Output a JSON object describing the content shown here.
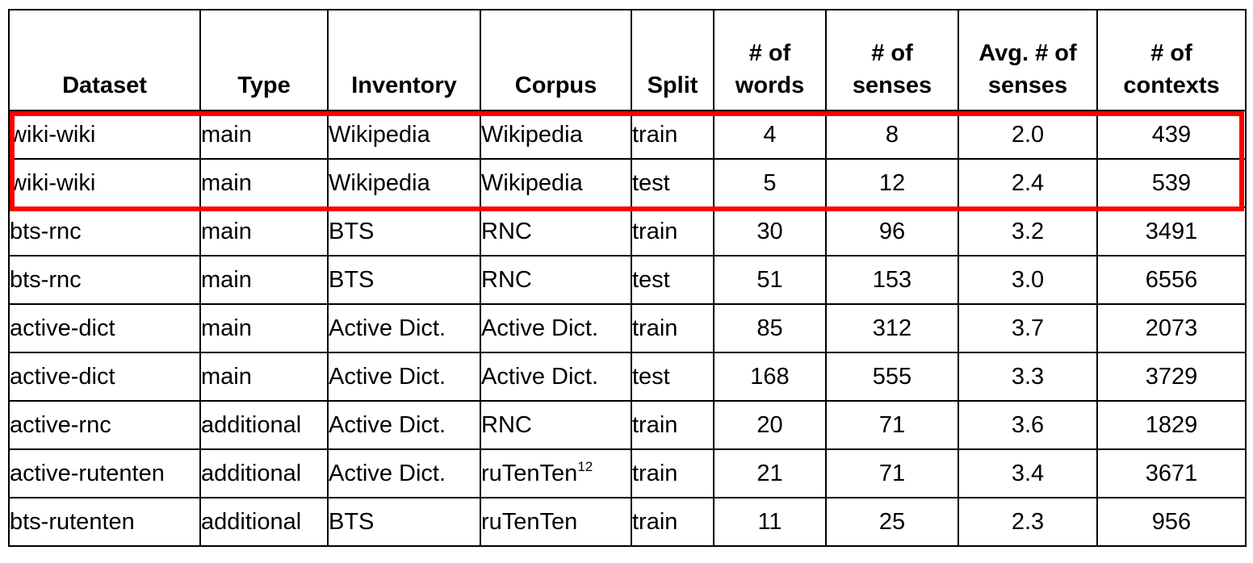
{
  "table": {
    "columns": [
      {
        "line1": "",
        "line2": "Dataset"
      },
      {
        "line1": "",
        "line2": "Type"
      },
      {
        "line1": "",
        "line2": "Inventory"
      },
      {
        "line1": "",
        "line2": "Corpus"
      },
      {
        "line1": "",
        "line2": "Split"
      },
      {
        "line1": "# of",
        "line2": "words"
      },
      {
        "line1": "# of",
        "line2": "senses"
      },
      {
        "line1": "Avg. # of",
        "line2": "senses"
      },
      {
        "line1": "# of",
        "line2": "contexts"
      }
    ],
    "rows": [
      {
        "dataset": "wiki-wiki",
        "type": "main",
        "inventory": "Wikipedia",
        "corpus": "Wikipedia",
        "corpus_sup": "",
        "split": "train",
        "words": "4",
        "senses": "8",
        "avg_senses": "2.0",
        "contexts": "439"
      },
      {
        "dataset": "wiki-wiki",
        "type": "main",
        "inventory": "Wikipedia",
        "corpus": "Wikipedia",
        "corpus_sup": "",
        "split": "test",
        "words": "5",
        "senses": "12",
        "avg_senses": "2.4",
        "contexts": "539"
      },
      {
        "dataset": "bts-rnc",
        "type": "main",
        "inventory": "BTS",
        "corpus": "RNC",
        "corpus_sup": "",
        "split": "train",
        "words": "30",
        "senses": "96",
        "avg_senses": "3.2",
        "contexts": "3491"
      },
      {
        "dataset": "bts-rnc",
        "type": "main",
        "inventory": "BTS",
        "corpus": "RNC",
        "corpus_sup": "",
        "split": "test",
        "words": "51",
        "senses": "153",
        "avg_senses": "3.0",
        "contexts": "6556"
      },
      {
        "dataset": "active-dict",
        "type": "main",
        "inventory": "Active Dict.",
        "corpus": "Active Dict.",
        "corpus_sup": "",
        "split": "train",
        "words": "85",
        "senses": "312",
        "avg_senses": "3.7",
        "contexts": "2073"
      },
      {
        "dataset": "active-dict",
        "type": "main",
        "inventory": "Active Dict.",
        "corpus": "Active Dict.",
        "corpus_sup": "",
        "split": "test",
        "words": "168",
        "senses": "555",
        "avg_senses": "3.3",
        "contexts": "3729"
      },
      {
        "dataset": "active-rnc",
        "type": "additional",
        "inventory": "Active Dict.",
        "corpus": "RNC",
        "corpus_sup": "",
        "split": "train",
        "words": "20",
        "senses": "71",
        "avg_senses": "3.6",
        "contexts": "1829"
      },
      {
        "dataset": "active-rutenten",
        "type": "additional",
        "inventory": "Active Dict.",
        "corpus": "ruTenTen",
        "corpus_sup": "12",
        "split": "train",
        "words": "21",
        "senses": "71",
        "avg_senses": "3.4",
        "contexts": "3671"
      },
      {
        "dataset": "bts-rutenten",
        "type": "additional",
        "inventory": "BTS",
        "corpus": "ruTenTen",
        "corpus_sup": "",
        "split": "train",
        "words": "11",
        "senses": "25",
        "avg_senses": "2.3",
        "contexts": "956"
      }
    ]
  },
  "colors": {
    "highlight": "#ff0000",
    "border": "#000000"
  }
}
